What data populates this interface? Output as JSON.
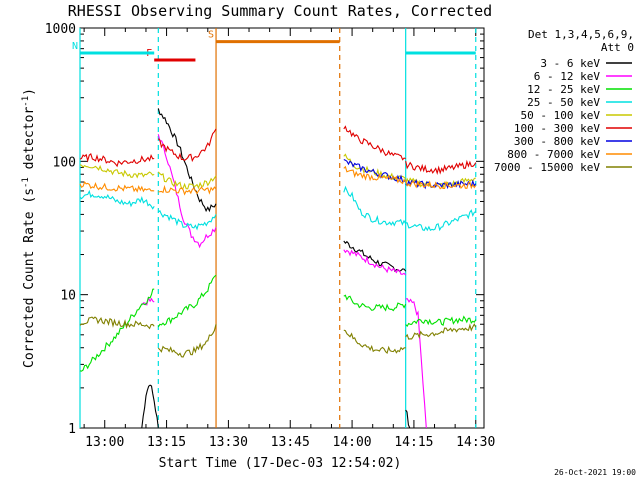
{
  "chart_data": {
    "type": "line",
    "title": "RHESSI Observing Summary Count Rates, Corrected",
    "xlabel": "Start Time (17-Dec-03 12:54:02)",
    "ylabel": "Corrected Count Rate (s",
    "ylabel_sup1": "-1",
    "ylabel_mid": " detector",
    "ylabel_sup2": "-1",
    "ylabel_end": ")",
    "y_scale": "log",
    "ylim": [
      1,
      1000
    ],
    "xlim": [
      "12:54",
      "14:32"
    ],
    "x_ticks": [
      "13:00",
      "13:15",
      "13:30",
      "13:45",
      "14:00",
      "14:15",
      "14:30"
    ],
    "y_ticks": [
      "1",
      "10",
      "100",
      "1000"
    ],
    "legend": {
      "header1": "Det 1,3,4,5,6,9,",
      "header2": "Att 0",
      "placement": "right"
    },
    "timestamp": "26-Oct-2021 19:00",
    "flags": [
      {
        "label": "F",
        "color": "#e00000",
        "start": "13:12",
        "end": "13:22",
        "level": 575
      },
      {
        "label": "N",
        "color": "#00e0e0",
        "start": "12:54",
        "end": "13:12",
        "level": 650
      },
      {
        "label": "S",
        "color": "#e07000",
        "start": "13:27",
        "end": "13:57",
        "level": 790
      },
      {
        "label": "",
        "color": "#00e0e0",
        "start": "14:13",
        "end": "14:30",
        "level": 650
      }
    ],
    "markers": [
      {
        "time": "12:54",
        "color": "#00e0e0",
        "style": "solid"
      },
      {
        "time": "13:13",
        "color": "#00e0e0",
        "style": "dashed"
      },
      {
        "time": "13:27",
        "color": "#e07000",
        "style": "solid"
      },
      {
        "time": "13:57",
        "color": "#e07000",
        "style": "dashed"
      },
      {
        "time": "14:13",
        "color": "#00e0e0",
        "style": "solid"
      },
      {
        "time": "14:30",
        "color": "#00e0e0",
        "style": "dashed"
      }
    ],
    "series": [
      {
        "name": "3 - 6 keV",
        "color": "#000000",
        "seg1": [
          [
            "13:09",
            1.0
          ],
          [
            "13:10",
            1.8
          ],
          [
            "13:11",
            2.2
          ],
          [
            "13:12",
            1.6
          ],
          [
            "13:13",
            1.0
          ]
        ],
        "seg2": [
          [
            "13:13",
            245
          ],
          [
            "13:15",
            200
          ],
          [
            "13:18",
            130
          ],
          [
            "13:21",
            72
          ],
          [
            "13:23",
            52
          ],
          [
            "13:25",
            43
          ],
          [
            "13:27",
            48
          ]
        ],
        "seg3": [
          [
            "13:58",
            25
          ],
          [
            "14:01",
            22
          ],
          [
            "14:04",
            19
          ],
          [
            "14:07",
            17
          ],
          [
            "14:10",
            16
          ],
          [
            "14:13",
            15
          ]
        ],
        "seg4": [
          [
            "14:13",
            1.4
          ],
          [
            "14:14",
            1.0
          ]
        ]
      },
      {
        "name": "6 - 12 keV",
        "color": "#ff00ff",
        "seg1": [
          [
            "13:09",
            8.5
          ],
          [
            "13:11",
            9
          ],
          [
            "13:12",
            8.8
          ]
        ],
        "seg2": [
          [
            "13:13",
            160
          ],
          [
            "13:15",
            110
          ],
          [
            "13:17",
            65
          ],
          [
            "13:19",
            38
          ],
          [
            "13:21",
            28
          ],
          [
            "13:23",
            24
          ],
          [
            "13:25",
            28
          ],
          [
            "13:27",
            32
          ]
        ],
        "seg3": [
          [
            "13:58",
            22
          ],
          [
            "14:01",
            20
          ],
          [
            "14:04",
            18
          ],
          [
            "14:07",
            16
          ],
          [
            "14:10",
            15
          ],
          [
            "14:13",
            14
          ]
        ],
        "seg4": [
          [
            "14:13",
            9
          ],
          [
            "14:15",
            8.5
          ],
          [
            "14:16",
            7
          ],
          [
            "14:18",
            1.0
          ]
        ]
      },
      {
        "name": "12 - 25 keV",
        "color": "#00e000",
        "seg1": [
          [
            "12:54",
            2.6
          ],
          [
            "12:57",
            3.2
          ],
          [
            "13:00",
            4.0
          ],
          [
            "13:03",
            5.0
          ],
          [
            "13:06",
            6.5
          ],
          [
            "13:09",
            8.5
          ],
          [
            "13:11",
            9.5
          ],
          [
            "13:12",
            11
          ]
        ],
        "seg2": [
          [
            "13:13",
            6
          ],
          [
            "13:16",
            6.5
          ],
          [
            "13:19",
            7.5
          ],
          [
            "13:22",
            8.5
          ],
          [
            "13:25",
            11
          ],
          [
            "13:27",
            14
          ]
        ],
        "seg3": [
          [
            "13:58",
            10
          ],
          [
            "14:01",
            8.5
          ],
          [
            "14:04",
            8
          ],
          [
            "14:07",
            8
          ],
          [
            "14:10",
            8
          ],
          [
            "14:13",
            8.5
          ]
        ],
        "seg4": [
          [
            "14:13",
            6
          ],
          [
            "14:17",
            6.5
          ],
          [
            "14:21",
            6.2
          ],
          [
            "14:26",
            6.5
          ],
          [
            "14:30",
            6.5
          ]
        ]
      },
      {
        "name": "25 - 50 keV",
        "color": "#00e0e0",
        "seg1": [
          [
            "12:54",
            55
          ],
          [
            "12:57",
            57
          ],
          [
            "13:00",
            55
          ],
          [
            "13:03",
            50
          ],
          [
            "13:06",
            48
          ],
          [
            "13:09",
            52
          ],
          [
            "13:12",
            46
          ]
        ],
        "seg2": [
          [
            "13:13",
            42
          ],
          [
            "13:16",
            38
          ],
          [
            "13:19",
            33
          ],
          [
            "13:22",
            32
          ],
          [
            "13:25",
            35
          ],
          [
            "13:27",
            40
          ]
        ],
        "seg3": [
          [
            "13:58",
            62
          ],
          [
            "14:00",
            55
          ],
          [
            "14:02",
            42
          ],
          [
            "14:05",
            37
          ],
          [
            "14:08",
            35
          ],
          [
            "14:11",
            35
          ],
          [
            "14:13",
            34
          ]
        ],
        "seg4": [
          [
            "14:13",
            34
          ],
          [
            "14:16",
            32
          ],
          [
            "14:19",
            31
          ],
          [
            "14:22",
            33
          ],
          [
            "14:26",
            37
          ],
          [
            "14:30",
            42
          ]
        ]
      },
      {
        "name": "50 - 100 keV",
        "color": "#c8c800",
        "seg1": [
          [
            "12:54",
            95
          ],
          [
            "12:57",
            93
          ],
          [
            "13:00",
            88
          ],
          [
            "13:03",
            82
          ],
          [
            "13:06",
            80
          ],
          [
            "13:09",
            78
          ],
          [
            "13:12",
            80
          ]
        ],
        "seg2": [
          [
            "13:13",
            80
          ],
          [
            "13:16",
            70
          ],
          [
            "13:19",
            65
          ],
          [
            "13:22",
            65
          ],
          [
            "13:25",
            70
          ],
          [
            "13:27",
            78
          ]
        ],
        "seg3": [
          [
            "13:58",
            110
          ],
          [
            "14:01",
            92
          ],
          [
            "14:04",
            85
          ],
          [
            "14:07",
            80
          ],
          [
            "14:10",
            76
          ],
          [
            "14:13",
            74
          ]
        ],
        "seg4": [
          [
            "14:13",
            72
          ],
          [
            "14:17",
            68
          ],
          [
            "14:21",
            66
          ],
          [
            "14:25",
            68
          ],
          [
            "14:30",
            75
          ]
        ]
      },
      {
        "name": "100 - 300 keV",
        "color": "#e00000",
        "seg1": [
          [
            "12:54",
            105
          ],
          [
            "12:57",
            108
          ],
          [
            "13:00",
            103
          ],
          [
            "13:03",
            97
          ],
          [
            "13:06",
            100
          ],
          [
            "13:09",
            103
          ],
          [
            "13:12",
            105
          ]
        ],
        "seg2": [
          [
            "13:13",
            140
          ],
          [
            "13:16",
            118
          ],
          [
            "13:19",
            105
          ],
          [
            "13:22",
            108
          ],
          [
            "13:25",
            130
          ],
          [
            "13:27",
            175
          ]
        ],
        "seg3": [
          [
            "13:58",
            185
          ],
          [
            "14:01",
            150
          ],
          [
            "14:04",
            135
          ],
          [
            "14:07",
            122
          ],
          [
            "14:10",
            110
          ],
          [
            "14:13",
            105
          ]
        ],
        "seg4": [
          [
            "14:13",
            95
          ],
          [
            "14:17",
            88
          ],
          [
            "14:21",
            86
          ],
          [
            "14:25",
            90
          ],
          [
            "14:30",
            98
          ]
        ]
      },
      {
        "name": "300 - 800 keV",
        "color": "#0000e0",
        "seg3": [
          [
            "13:58",
            100
          ],
          [
            "14:01",
            92
          ],
          [
            "14:04",
            85
          ],
          [
            "14:07",
            80
          ],
          [
            "14:10",
            76
          ],
          [
            "14:13",
            72
          ]
        ],
        "seg4": [
          [
            "14:13",
            70
          ],
          [
            "14:17",
            67
          ],
          [
            "14:21",
            66
          ],
          [
            "14:25",
            67
          ],
          [
            "14:30",
            68
          ]
        ]
      },
      {
        "name": "800 - 7000 keV",
        "color": "#ff8c00",
        "seg1": [
          [
            "12:54",
            68
          ],
          [
            "12:57",
            66
          ],
          [
            "13:00",
            64
          ],
          [
            "13:03",
            63
          ],
          [
            "13:06",
            62
          ],
          [
            "13:09",
            61
          ],
          [
            "13:12",
            60
          ]
        ],
        "seg2": [
          [
            "13:13",
            62
          ],
          [
            "13:16",
            61
          ],
          [
            "13:19",
            60
          ],
          [
            "13:22",
            60
          ],
          [
            "13:25",
            61
          ],
          [
            "13:27",
            62
          ]
        ],
        "seg3": [
          [
            "13:58",
            88
          ],
          [
            "14:01",
            80
          ],
          [
            "14:04",
            77
          ],
          [
            "14:07",
            75
          ],
          [
            "14:10",
            73
          ],
          [
            "14:13",
            71
          ]
        ],
        "seg4": [
          [
            "14:13",
            69
          ],
          [
            "14:17",
            67
          ],
          [
            "14:21",
            66
          ],
          [
            "14:25",
            66
          ],
          [
            "14:30",
            66
          ]
        ]
      },
      {
        "name": "7000 - 15000 keV",
        "color": "#808000",
        "seg1": [
          [
            "12:54",
            6.2
          ],
          [
            "12:58",
            6.5
          ],
          [
            "13:02",
            6.2
          ],
          [
            "13:06",
            6.0
          ],
          [
            "13:09",
            6.0
          ],
          [
            "13:12",
            5.8
          ]
        ],
        "seg2": [
          [
            "13:13",
            4.0
          ],
          [
            "13:16",
            3.8
          ],
          [
            "13:19",
            3.6
          ],
          [
            "13:22",
            3.8
          ],
          [
            "13:25",
            4.5
          ],
          [
            "13:27",
            6
          ]
        ],
        "seg3": [
          [
            "13:58",
            5.5
          ],
          [
            "14:01",
            4.5
          ],
          [
            "14:04",
            4.0
          ],
          [
            "14:07",
            3.8
          ],
          [
            "14:10",
            3.8
          ],
          [
            "14:13",
            4.0
          ]
        ],
        "seg4": [
          [
            "14:13",
            4.8
          ],
          [
            "14:17",
            5
          ],
          [
            "14:21",
            5.2
          ],
          [
            "14:25",
            5.5
          ],
          [
            "14:30",
            5.7
          ]
        ]
      }
    ]
  }
}
